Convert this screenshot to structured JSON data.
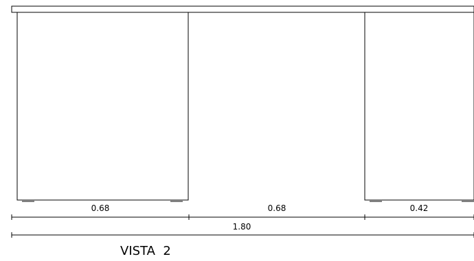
{
  "drawing": {
    "dimensions": {
      "segment_1": "0.68",
      "segment_2": "0.68",
      "segment_3": "0.42",
      "total": "1.80"
    },
    "view_title": "VISTA  2"
  }
}
